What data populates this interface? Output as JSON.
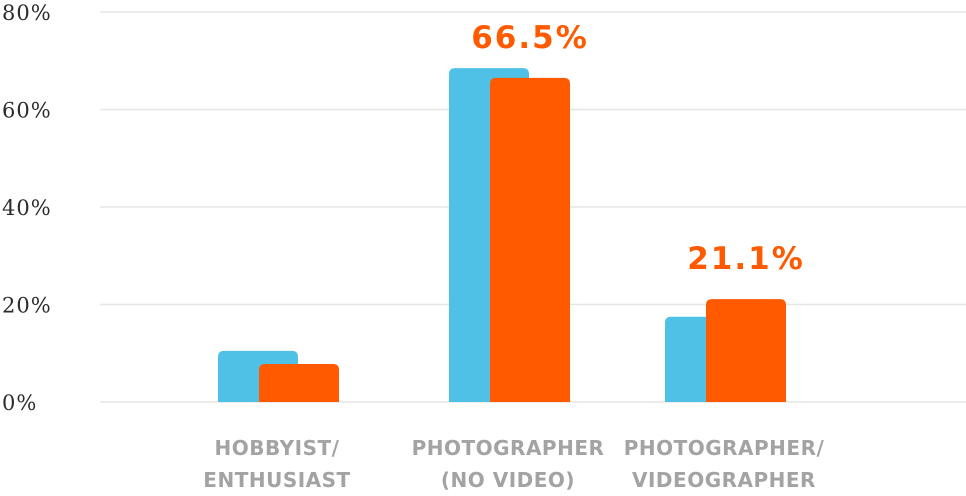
{
  "chart_data": {
    "type": "bar",
    "categories": [
      [
        "HOBBYIST/",
        "ENTHUSIAST"
      ],
      [
        "PHOTOGRAPHER",
        "(NO VIDEO)"
      ],
      [
        "PHOTOGRAPHER/",
        "VIDEOGRAPHER"
      ]
    ],
    "series": [
      {
        "color": "#4fc0e6",
        "values": [
          10.5,
          68.5,
          17.5
        ]
      },
      {
        "color": "#ff5a00",
        "values": [
          7.8,
          66.5,
          21.1
        ]
      }
    ],
    "data_labels": [
      "",
      "66.5%",
      "21.1%"
    ],
    "ylim": [
      0,
      80
    ],
    "yticks": [
      "0%",
      "20%",
      "40%",
      "60%",
      "80%"
    ],
    "ytick_values": [
      0,
      20,
      40,
      60,
      80
    ],
    "grid": true,
    "title": "",
    "xlabel": "",
    "ylabel": ""
  }
}
